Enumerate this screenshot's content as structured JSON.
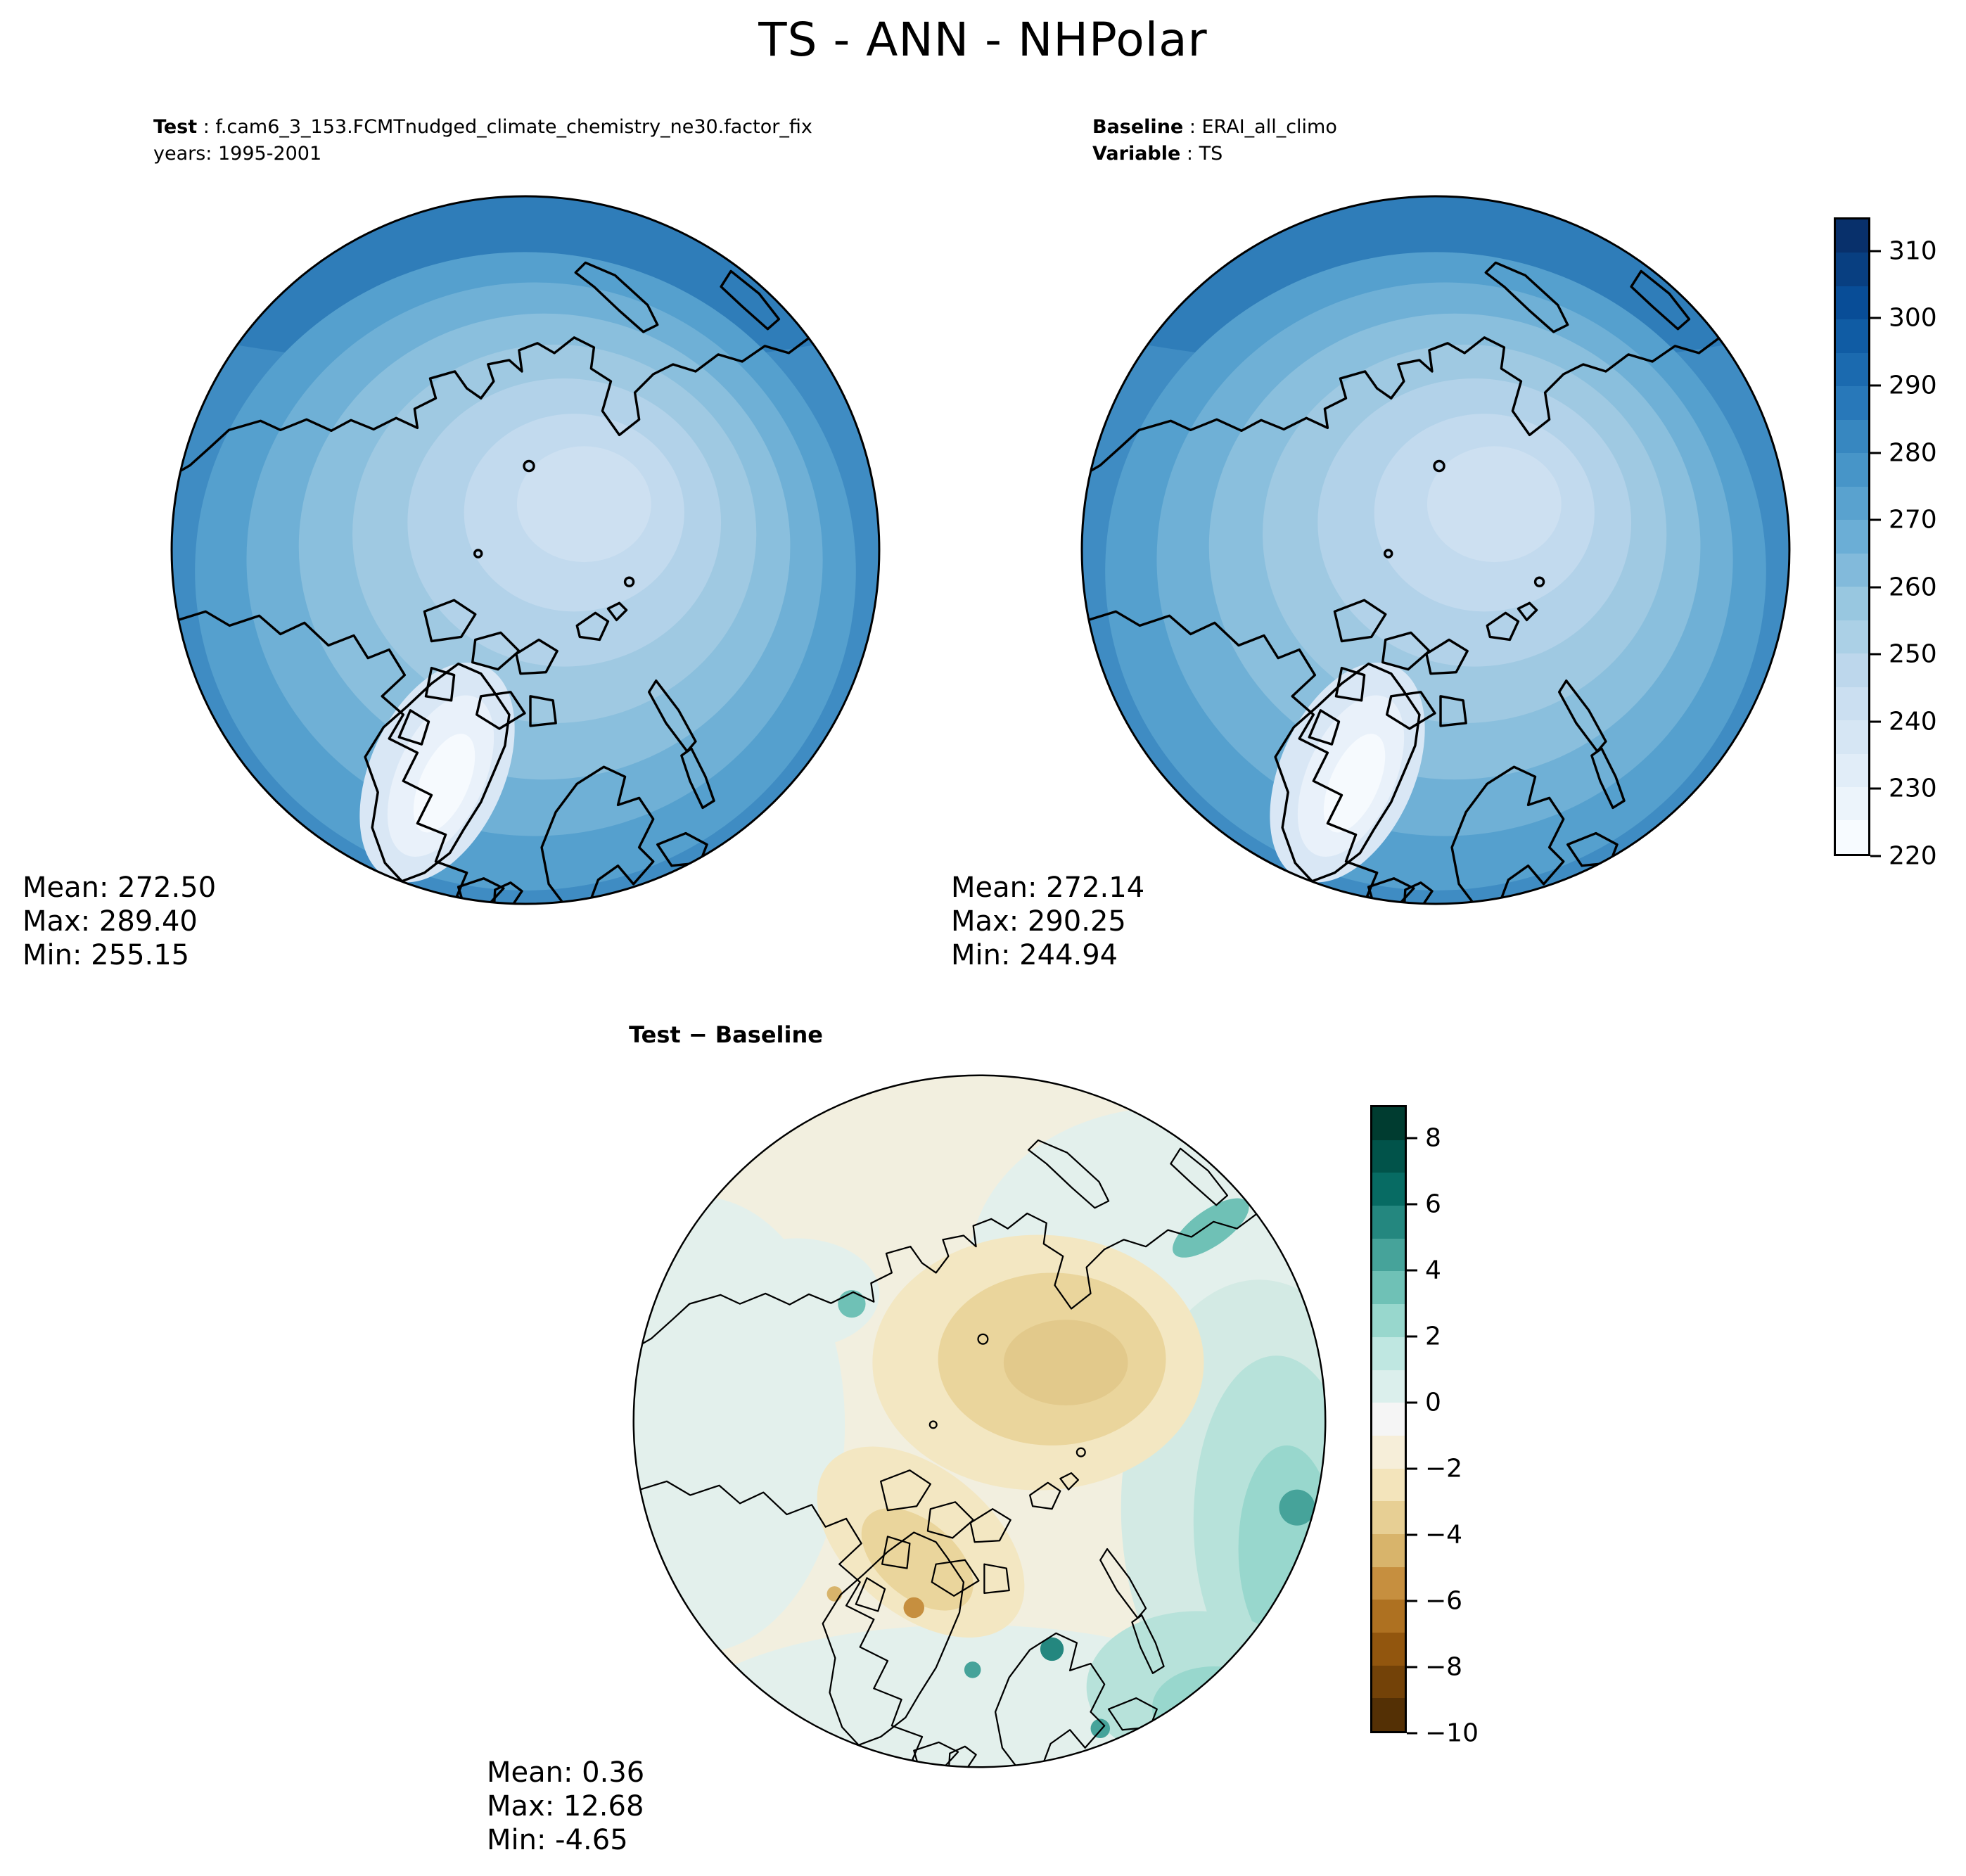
{
  "figure": {
    "title": "TS - ANN - NHPolar",
    "background": "#ffffff"
  },
  "panels": {
    "test": {
      "label_key": "Test",
      "label_value": " : f.cam6_3_153.FCMTnudged_climate_chemistry_ne30.factor_fix",
      "years_line": "years: 1995-2001",
      "stats": {
        "mean": "Mean: 272.50",
        "max": "Max: 289.40",
        "min": "Min: 255.15"
      }
    },
    "baseline": {
      "label_key": "Baseline",
      "label_value": " : ERAI_all_climo",
      "variable_key": "Variable",
      "variable_value": " : TS",
      "stats": {
        "mean": "Mean: 272.14",
        "max": "Max: 290.25",
        "min": "Min: 244.94"
      }
    },
    "diff": {
      "title": "Test − Baseline",
      "stats": {
        "mean": "Mean:  0.36",
        "max": "Max: 12.68",
        "min": "Min: -4.65"
      }
    }
  },
  "colorbars": {
    "temperature": {
      "min": 220,
      "max": 315,
      "band_step": 5,
      "ticks": [
        310,
        300,
        290,
        280,
        270,
        260,
        250,
        240,
        230,
        220
      ],
      "colors_low_to_high": [
        "#f7fbff",
        "#ecf4fb",
        "#e1edf8",
        "#d6e6f4",
        "#cbdff1",
        "#bdd7ec",
        "#abd0e6",
        "#98c7e0",
        "#82badb",
        "#6baed6",
        "#59a2cf",
        "#4795c8",
        "#3787c0",
        "#2878b9",
        "#1b6aaf",
        "#105ca4",
        "#084d97",
        "#083f81",
        "#08306b"
      ]
    },
    "difference": {
      "min": -10,
      "max": 9,
      "band_step": 1,
      "ticks": [
        8,
        6,
        4,
        2,
        0,
        -2,
        -4,
        -6,
        -8,
        -10
      ],
      "colors_low_to_high": [
        "#543005",
        "#734208",
        "#92560e",
        "#ae7121",
        "#c68f3f",
        "#d8b46b",
        "#e7cf94",
        "#f3e4bb",
        "#f6eed9",
        "#f5f5f5",
        "#dbefec",
        "#bfe7e1",
        "#98d7cd",
        "#6fc1b6",
        "#46a39a",
        "#24877f",
        "#076b63",
        "#01534a",
        "#003c30"
      ]
    }
  },
  "chart_data": [
    {
      "type": "heatmap",
      "subtype": "polar_stereographic_contour_map",
      "panel": "Test",
      "variable": "TS",
      "season": "ANN",
      "region": "NHPolar",
      "dataset": "f.cam6_3_153.FCMTnudged_climate_chemistry_ne30.factor_fix",
      "years": "1995-2001",
      "stats": {
        "mean": 272.5,
        "max": 289.4,
        "min": 255.15
      },
      "colorbar_ref": "temperature",
      "colorbar_range": [
        220,
        315
      ],
      "colorbar_ticks": [
        220,
        230,
        240,
        250,
        260,
        270,
        280,
        290,
        300,
        310
      ]
    },
    {
      "type": "heatmap",
      "subtype": "polar_stereographic_contour_map",
      "panel": "Baseline",
      "variable": "TS",
      "season": "ANN",
      "region": "NHPolar",
      "dataset": "ERAI_all_climo",
      "stats": {
        "mean": 272.14,
        "max": 290.25,
        "min": 244.94
      },
      "colorbar_ref": "temperature",
      "colorbar_range": [
        220,
        315
      ],
      "colorbar_ticks": [
        220,
        230,
        240,
        250,
        260,
        270,
        280,
        290,
        300,
        310
      ]
    },
    {
      "type": "heatmap",
      "subtype": "polar_stereographic_contour_map",
      "panel": "Test − Baseline",
      "variable": "TS",
      "season": "ANN",
      "region": "NHPolar",
      "stats": {
        "mean": 0.36,
        "max": 12.68,
        "min": -4.65
      },
      "colorbar_ref": "difference",
      "colorbar_range": [
        -10,
        9
      ],
      "colorbar_ticks": [
        -10,
        -8,
        -6,
        -4,
        -2,
        0,
        2,
        4,
        6,
        8
      ]
    }
  ]
}
